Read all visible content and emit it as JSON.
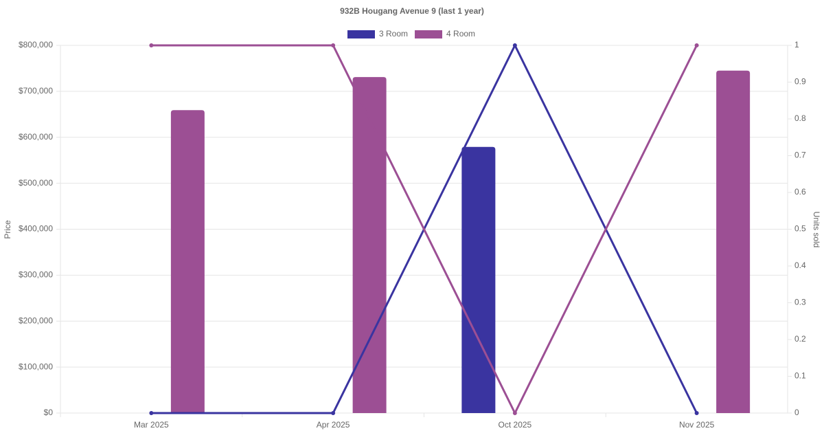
{
  "chart_data": {
    "type": "bar-line",
    "title": "932B Hougang Avenue 9 (last 1 year)",
    "categories": [
      "Mar 2025",
      "Apr 2025",
      "Oct 2025",
      "Nov 2025"
    ],
    "series": [
      {
        "name": "3 Room",
        "color": "#3a34a0",
        "values": [
          null,
          null,
          579000,
          null
        ],
        "units_sold": [
          0,
          0,
          1,
          0
        ]
      },
      {
        "name": "4 Room",
        "color": "#9c4f94",
        "values": [
          659000,
          731000,
          null,
          745000
        ],
        "units_sold": [
          1,
          1,
          0,
          1
        ]
      }
    ],
    "y_label": "Price",
    "y2_label": "Units sold",
    "ylim": [
      0,
      800000
    ],
    "yticks": [
      {
        "value": 0,
        "label": "$0"
      },
      {
        "value": 100000,
        "label": "$100,000"
      },
      {
        "value": 200000,
        "label": "$200,000"
      },
      {
        "value": 300000,
        "label": "$300,000"
      },
      {
        "value": 400000,
        "label": "$400,000"
      },
      {
        "value": 500000,
        "label": "$500,000"
      },
      {
        "value": 600000,
        "label": "$600,000"
      },
      {
        "value": 700000,
        "label": "$700,000"
      },
      {
        "value": 800000,
        "label": "$800,000"
      }
    ],
    "y2lim": [
      0,
      1
    ],
    "y2ticks": [
      0,
      0.1,
      0.2,
      0.3,
      0.4,
      0.5,
      0.6,
      0.7,
      0.8,
      0.9,
      1
    ],
    "grid": true
  }
}
